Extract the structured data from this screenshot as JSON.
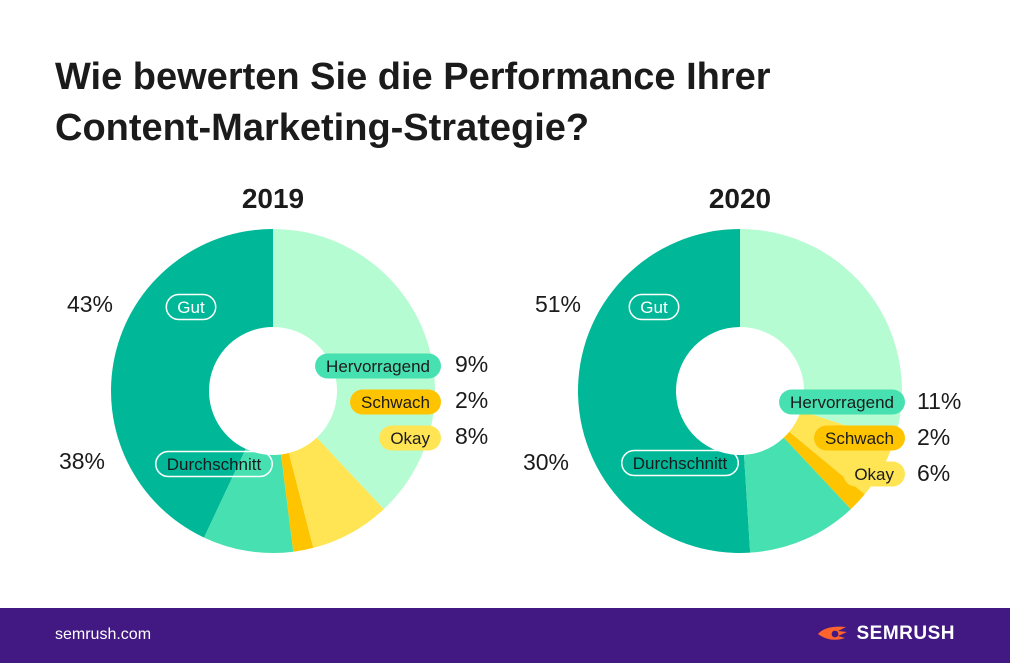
{
  "title_lines": [
    "Wie bewerten Sie die Performance Ihrer",
    "Content-Marketing-Strategie?"
  ],
  "footer": {
    "url": "semrush.com",
    "brand": "SEMRUSH"
  },
  "colors": {
    "Gut": "#00b897",
    "Hervorragend": "#47e0b0",
    "Schwach": "#ffc400",
    "Okay": "#ffe554",
    "Durchschnitt": "#b6fcd2",
    "brand_bar": "#421983",
    "logo": "#ff642d"
  },
  "chart_data": [
    {
      "type": "pie",
      "title": "2019",
      "categories": [
        "Gut",
        "Hervorragend",
        "Schwach",
        "Okay",
        "Durchschnitt"
      ],
      "values": [
        43,
        9,
        2,
        8,
        38
      ],
      "value_labels": [
        "43%",
        "9%",
        "2%",
        "8%",
        "38%"
      ]
    },
    {
      "type": "pie",
      "title": "2020",
      "categories": [
        "Gut",
        "Hervorragend",
        "Schwach",
        "Okay",
        "Durchschnitt"
      ],
      "values": [
        51,
        11,
        2,
        6,
        30
      ],
      "value_labels": [
        "51%",
        "11%",
        "2%",
        "6%",
        "30%"
      ]
    }
  ]
}
